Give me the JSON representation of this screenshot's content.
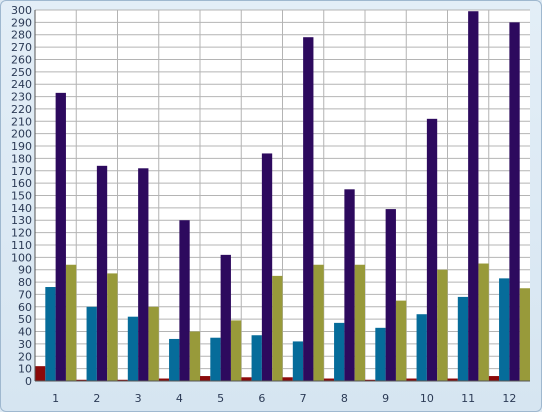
{
  "chart_data": {
    "type": "bar",
    "title": "",
    "xlabel": "",
    "ylabel": "",
    "categories": [
      "1",
      "2",
      "3",
      "4",
      "5",
      "6",
      "7",
      "8",
      "9",
      "10",
      "11",
      "12"
    ],
    "ylim": [
      0,
      300
    ],
    "ytick_step": 10,
    "grid": true,
    "legend": "none",
    "series": [
      {
        "color": "#8b0a0a",
        "values": [
          12,
          1,
          1,
          2,
          4,
          3,
          3,
          2,
          1,
          2,
          2,
          4
        ]
      },
      {
        "color": "#066c9a",
        "values": [
          76,
          60,
          52,
          34,
          35,
          37,
          32,
          47,
          43,
          54,
          68,
          83
        ]
      },
      {
        "color": "#2d0a5e",
        "values": [
          233,
          174,
          172,
          130,
          102,
          184,
          278,
          155,
          139,
          212,
          299,
          290
        ]
      },
      {
        "color": "#989a3a",
        "values": [
          94,
          87,
          60,
          40,
          49,
          85,
          94,
          94,
          65,
          90,
          95,
          75
        ]
      }
    ]
  }
}
